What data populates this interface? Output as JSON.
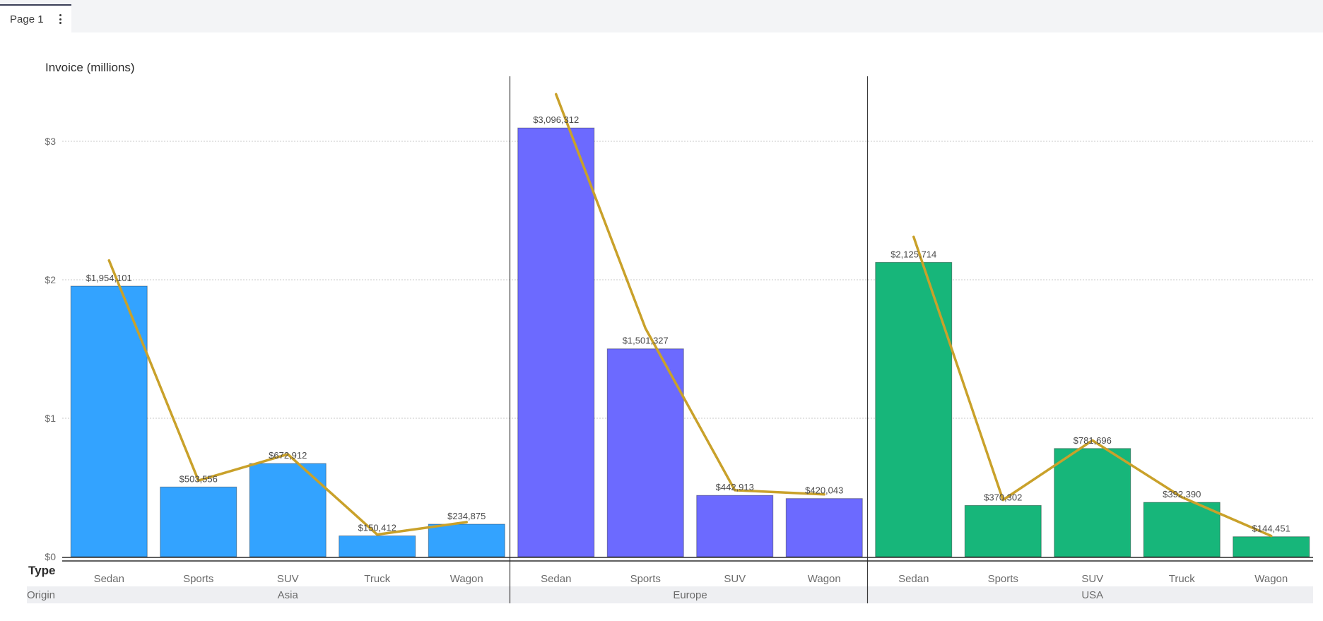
{
  "tabs": [
    {
      "label": "Page 1"
    }
  ],
  "chart_data": {
    "type": "bar",
    "title": "Invoice (millions)",
    "ylabel": "Invoice (millions)",
    "ylim": [
      0,
      3.5
    ],
    "yticks": [
      0,
      1,
      2,
      3
    ],
    "ytick_labels": [
      "$0",
      "$1",
      "$2",
      "$3"
    ],
    "x_axis_title": "Type",
    "group_axis_title": "Origin",
    "grid": true,
    "groups": [
      {
        "name": "Asia",
        "color": "#33a3ff",
        "categories": [
          "Sedan",
          "Sports",
          "SUV",
          "Truck",
          "Wagon"
        ],
        "values": [
          1954101,
          503556,
          672912,
          150412,
          234875
        ],
        "labels": [
          "$1,954,101",
          "$503,556",
          "$672,912",
          "$150,412",
          "$234,875"
        ],
        "line_values": [
          2140000,
          550000,
          740000,
          160000,
          250000
        ]
      },
      {
        "name": "Europe",
        "color": "#6c6aff",
        "categories": [
          "Sedan",
          "Sports",
          "SUV",
          "Wagon"
        ],
        "values": [
          3096312,
          1501327,
          442913,
          420043
        ],
        "labels": [
          "$3,096,312",
          "$1,501,327",
          "$442,913",
          "$420,043"
        ],
        "line_values": [
          3340000,
          1650000,
          480000,
          450000
        ]
      },
      {
        "name": "USA",
        "color": "#17b67a",
        "categories": [
          "Sedan",
          "Sports",
          "SUV",
          "Truck",
          "Wagon"
        ],
        "values": [
          2125714,
          370302,
          781696,
          392390,
          144451
        ],
        "labels": [
          "$2,125,714",
          "$370,302",
          "$781,696",
          "$392,390",
          "$144,451"
        ],
        "line_values": [
          2310000,
          410000,
          840000,
          430000,
          150000
        ]
      }
    ],
    "line_color": "#c9a12a"
  }
}
